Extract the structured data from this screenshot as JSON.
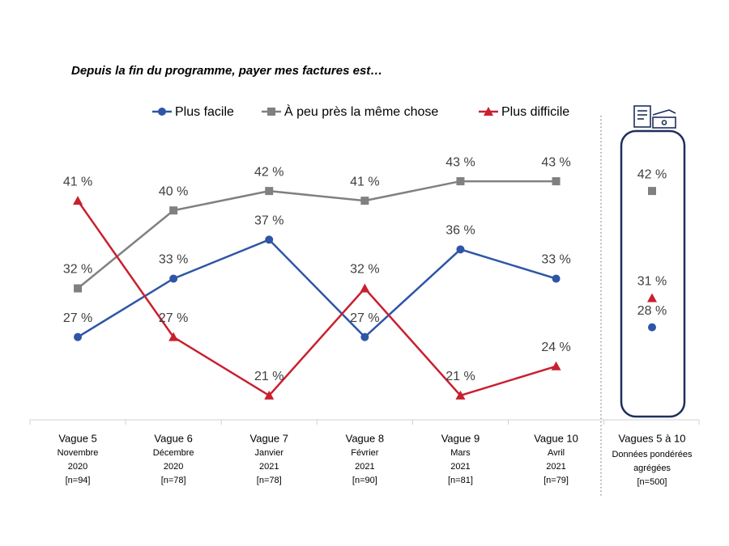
{
  "chart_data": {
    "type": "line",
    "title": "Depuis la fin du programme, payer mes factures est…",
    "categories": [
      "Vague 5",
      "Vague 6",
      "Vague 7",
      "Vague 8",
      "Vague 9",
      "Vague 10"
    ],
    "category_details": [
      [
        "Novembre",
        "2020",
        "[n=94]"
      ],
      [
        "Décembre",
        "2020",
        "[n=78]"
      ],
      [
        "Janvier",
        "2021",
        "[n=78]"
      ],
      [
        "Février",
        "2021",
        "[n=90]"
      ],
      [
        "Mars",
        "2021",
        "[n=81]"
      ],
      [
        "Avril",
        "2021",
        "[n=79]"
      ]
    ],
    "aggregate_category": "Vagues 5 à 10",
    "aggregate_details": [
      "Données pondérées",
      "agrégées",
      "[n=500]"
    ],
    "ylim": [
      18.5,
      45
    ],
    "series": [
      {
        "name": "Plus facile",
        "color": "#2e55a6",
        "marker": "circle",
        "values": [
          27,
          33,
          37,
          27,
          36,
          33
        ],
        "value_labels": [
          "27 %",
          "33 %",
          "37 %",
          "27 %",
          "36 %",
          "33 %"
        ],
        "aggregate_value": 28,
        "aggregate_label": "28 %"
      },
      {
        "name": "À peu près la même chose",
        "color": "#808080",
        "marker": "square",
        "values": [
          32,
          40,
          42,
          41,
          43,
          43
        ],
        "value_labels": [
          "32 %",
          "40 %",
          "42 %",
          "41 %",
          "43 %",
          "43 %"
        ],
        "aggregate_value": 42,
        "aggregate_label": "42 %"
      },
      {
        "name": "Plus difficile",
        "color": "#c8202f",
        "marker": "triangle",
        "values": [
          41,
          27,
          21,
          32,
          21,
          24
        ],
        "value_labels": [
          "41 %",
          "27 %",
          "21 %",
          "32 %",
          "21 %",
          "24 %"
        ],
        "aggregate_value": 31,
        "aggregate_label": "31 %"
      }
    ]
  }
}
